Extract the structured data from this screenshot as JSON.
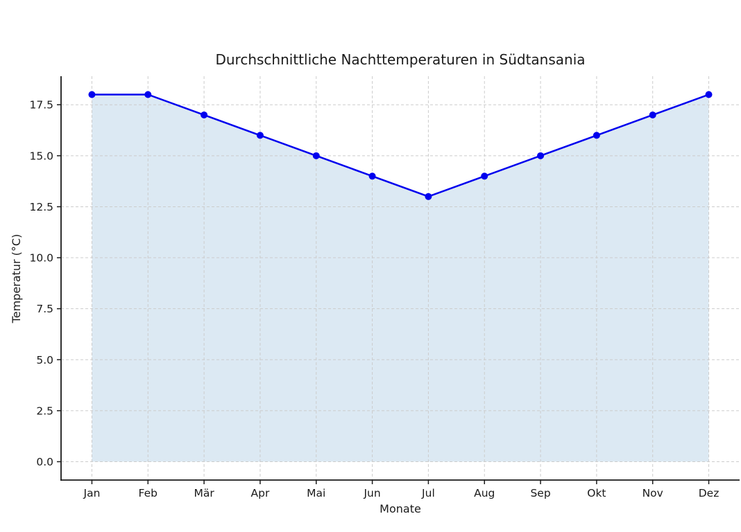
{
  "chart_data": {
    "type": "line",
    "title": "Durchschnittliche Nachttemperaturen in Südtansania",
    "xlabel": "Monate",
    "ylabel": "Temperatur (°C)",
    "categories": [
      "Jan",
      "Feb",
      "Mär",
      "Apr",
      "Mai",
      "Jun",
      "Jul",
      "Aug",
      "Sep",
      "Okt",
      "Nov",
      "Dez"
    ],
    "values": [
      18,
      18,
      17,
      16,
      15,
      14,
      13,
      14,
      15,
      16,
      17,
      18
    ],
    "yticks": [
      0.0,
      2.5,
      5.0,
      7.5,
      10.0,
      12.5,
      15.0,
      17.5
    ],
    "ytick_labels": [
      "0.0",
      "2.5",
      "5.0",
      "7.5",
      "10.0",
      "12.5",
      "15.0",
      "17.5"
    ],
    "ylim": [
      -0.9,
      18.9
    ],
    "xlim": [
      -0.55,
      11.55
    ],
    "grid": true,
    "grid_style": "dashed",
    "area_fill_baseline": 0,
    "legend": "none",
    "colors": {
      "line": "#0000ee",
      "marker": "#0000ee",
      "fill": "#dce9f3",
      "grid": "#cccccc",
      "spine": "#1a1a1a",
      "text": "#1a1a1a",
      "background": "#ffffff"
    }
  }
}
